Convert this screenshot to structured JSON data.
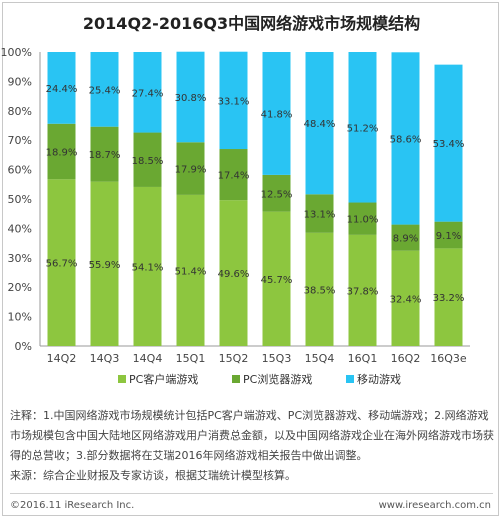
{
  "chart_data": {
    "type": "bar",
    "stacked": true,
    "percent": true,
    "title": "2014Q2-2016Q3中国网络游戏市场规模结构",
    "categories": [
      "14Q2",
      "14Q3",
      "14Q4",
      "15Q1",
      "15Q2",
      "15Q3",
      "15Q4",
      "16Q1",
      "16Q2",
      "16Q3e"
    ],
    "series": [
      {
        "name": "PC客户端游戏",
        "color": "#8dc63f",
        "values": [
          56.7,
          55.9,
          54.1,
          51.4,
          49.6,
          45.7,
          38.5,
          37.8,
          32.4,
          33.2
        ],
        "labels": [
          "56.7%",
          "55.9%",
          "54.1%",
          "51.4%",
          "49.6%",
          "45.7%",
          "38.5%",
          "37.8%",
          "32.4%",
          "33.2%"
        ]
      },
      {
        "name": "PC浏览器游戏",
        "color": "#6aa832",
        "values": [
          18.9,
          18.7,
          18.5,
          17.9,
          17.4,
          12.5,
          13.1,
          11.0,
          8.9,
          9.1
        ],
        "labels": [
          "18.9%",
          "18.7%",
          "18.5%",
          "17.9%",
          "17.4%",
          "12.5%",
          "13.1%",
          "11.0%",
          "8.9%",
          "9.1%"
        ]
      },
      {
        "name": "移动游戏",
        "color": "#29c4f3",
        "values": [
          24.4,
          25.4,
          27.4,
          30.8,
          33.1,
          41.8,
          48.4,
          51.2,
          58.6,
          53.4
        ],
        "labels": [
          "24.4%",
          "25.4%",
          "27.4%",
          "30.8%",
          "33.1%",
          "41.8%",
          "48.4%",
          "51.2%",
          "58.6%",
          "53.4%"
        ]
      }
    ],
    "yticks": [
      "0%",
      "10%",
      "20%",
      "30%",
      "40%",
      "50%",
      "60%",
      "70%",
      "80%",
      "90%",
      "100%"
    ],
    "ylim": [
      0,
      100
    ],
    "legend": "bottom",
    "grid": false
  },
  "notes": [
    "注释：1.中国网络游戏市场规模统计包括PC客户端游戏、PC浏览器游戏、移动端游戏；2.网络游戏",
    "市场规模包含中国大陆地区网络游戏用户消费总金额，以及中国网络游戏企业在海外网络游戏市场获",
    "得的总营收；3.部分数据将在艾瑞2016年网络游戏相关报告中做出调整。",
    "来源：综合企业财报及专家访谈，根据艾瑞统计模型核算。"
  ],
  "footer": {
    "copyright": "©2016.11 iResearch Inc.",
    "website": "www.iresearch.com.cn"
  }
}
